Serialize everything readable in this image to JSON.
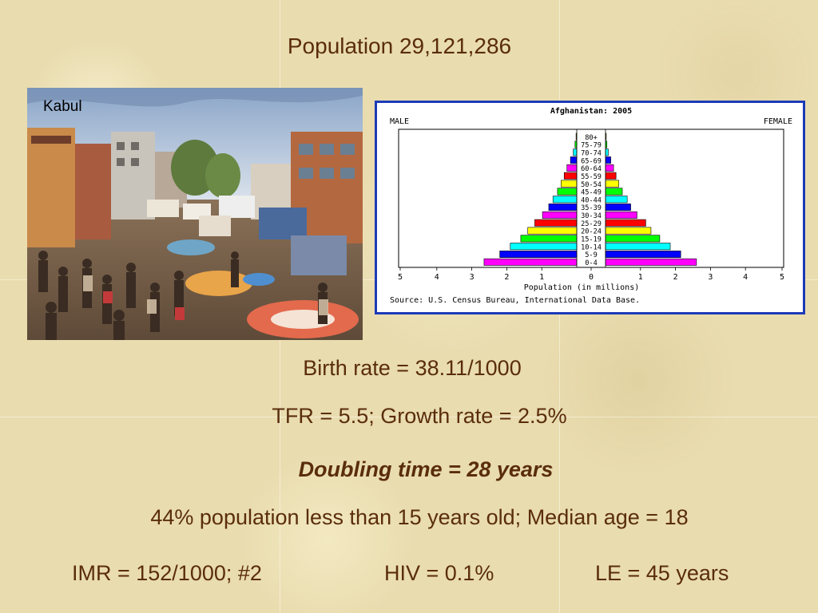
{
  "slide": {
    "title": "Population 29,121,286",
    "birth_rate": "Birth rate = 38.11/1000",
    "tfr_growth": "TFR = 5.5;  Growth rate = 2.5%",
    "doubling": "Doubling time = 28 years",
    "young_pct": "44% population less than 15 years old; Median age = 18",
    "imr": "IMR = 152/1000; #2",
    "hiv": "HIV = 0.1%",
    "le": "LE = 45 years"
  },
  "photo": {
    "label": "Kabul"
  },
  "chart_data": {
    "type": "bar",
    "orientation": "horizontal-pyramid",
    "title": "Afghanistan: 2005",
    "left_label": "MALE",
    "right_label": "FEMALE",
    "xlabel": "Population (in millions)",
    "source": "Source: U.S. Census Bureau, International Data Base.",
    "xlim": [
      -5,
      5
    ],
    "xticks": [
      "5",
      "4",
      "3",
      "2",
      "1",
      "0",
      "1",
      "2",
      "3",
      "4",
      "5"
    ],
    "categories": [
      "0-4",
      "5-9",
      "10-14",
      "15-19",
      "20-24",
      "25-29",
      "30-34",
      "35-39",
      "40-44",
      "45-49",
      "50-54",
      "55-59",
      "60-64",
      "65-69",
      "70-74",
      "75-79",
      "80+"
    ],
    "series": [
      {
        "name": "MALE",
        "values": [
          2.65,
          2.2,
          1.9,
          1.6,
          1.4,
          1.2,
          0.98,
          0.8,
          0.68,
          0.55,
          0.45,
          0.36,
          0.28,
          0.18,
          0.1,
          0.05,
          0.02
        ]
      },
      {
        "name": "FEMALE",
        "values": [
          2.6,
          2.15,
          1.85,
          1.55,
          1.3,
          1.15,
          0.9,
          0.72,
          0.62,
          0.48,
          0.38,
          0.3,
          0.23,
          0.15,
          0.08,
          0.04,
          0.02
        ]
      }
    ],
    "colors": [
      "#ff00ff",
      "#0000ff",
      "#00ffff",
      "#00ff00",
      "#ffff00",
      "#ff0000",
      "#ff00ff",
      "#0000ff",
      "#00ffff",
      "#00ff00",
      "#ffff00",
      "#ff0000",
      "#ff00ff",
      "#0000ff",
      "#00ffff",
      "#00ff00",
      "#ffff00"
    ],
    "frame_color": "#1c3bb8",
    "grid": false
  }
}
